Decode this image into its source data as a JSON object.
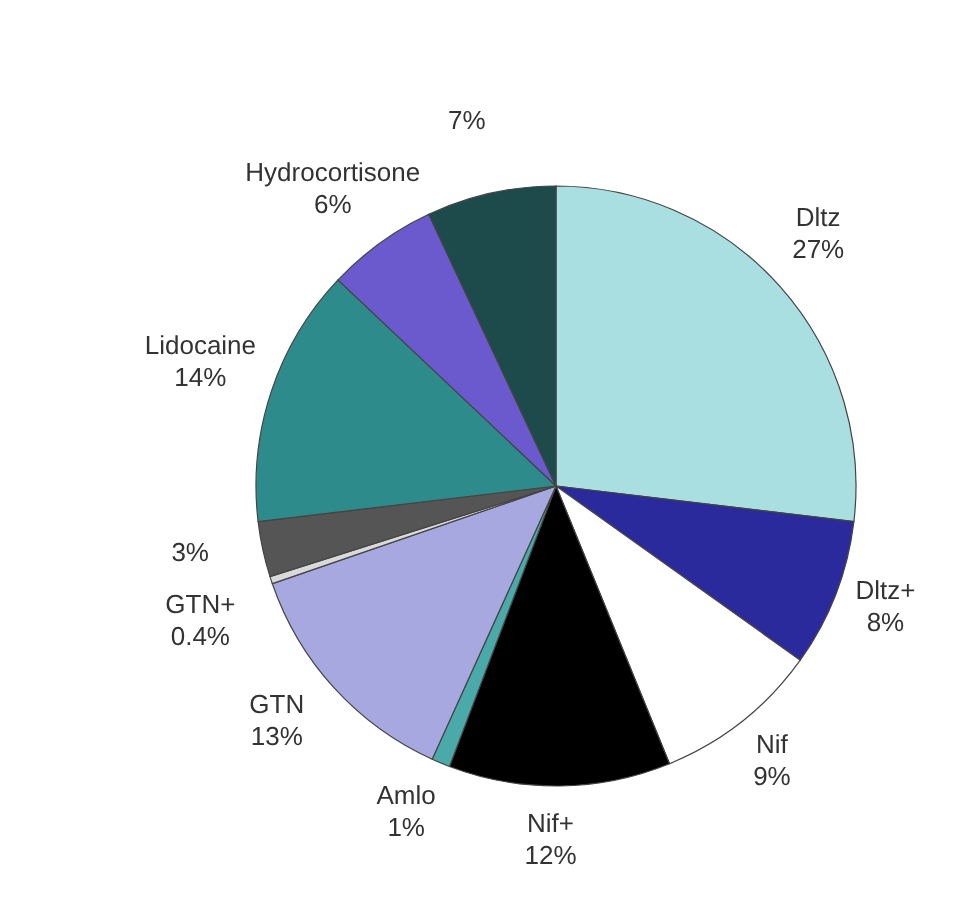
{
  "chart_data": {
    "type": "pie",
    "categories": [
      "Dltz",
      "Dltz+",
      "Nif",
      "Nif+",
      "Amlo",
      "GTN",
      "GTN+",
      null,
      "Lidocaine",
      "Hydrocortisone",
      null
    ],
    "values": [
      27,
      8,
      9,
      12,
      1,
      13,
      0.4,
      3,
      14,
      6,
      7
    ],
    "value_labels": [
      "27%",
      "8%",
      "9%",
      "12%",
      "1%",
      "13%",
      "0.4%",
      "3%",
      "14%",
      "6%",
      "7%"
    ],
    "colors": [
      "#a9dfe0",
      "#2b2a9c",
      "#ffffff",
      "#000000",
      "#4aa9a9",
      "#a8a8e0",
      "#d9d9d9",
      "#555555",
      "#2e8b8b",
      "#6a5acd",
      "#1d4a4a"
    ]
  }
}
